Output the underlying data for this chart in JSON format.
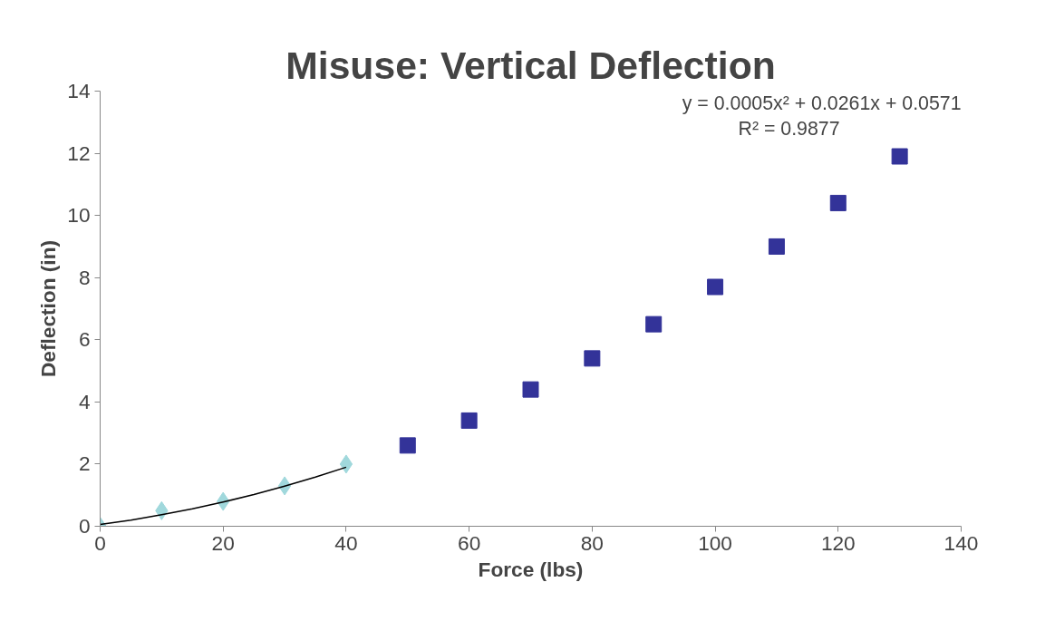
{
  "chart_data": {
    "type": "scatter",
    "title": "Misuse: Vertical Deflection",
    "xlabel": "Force (lbs)",
    "ylabel": "Deflection (in)",
    "xlim": [
      0,
      140
    ],
    "xticks": [
      0,
      20,
      40,
      60,
      80,
      100,
      120,
      140
    ],
    "ylim": [
      0,
      14
    ],
    "yticks": [
      0,
      2,
      4,
      6,
      8,
      10,
      12,
      14
    ],
    "grid": false,
    "series": [
      {
        "marker": "diamond",
        "color": "#a0d8dc",
        "x": [
          0,
          10,
          20,
          30,
          40
        ],
        "values": [
          0,
          0.5,
          0.8,
          1.3,
          2.0
        ]
      },
      {
        "marker": "square",
        "color": "#333399",
        "x": [
          50,
          60,
          70,
          80,
          90,
          100,
          110,
          120,
          130
        ],
        "values": [
          2.6,
          3.4,
          4.4,
          5.4,
          6.5,
          7.7,
          9.0,
          10.4,
          11.9
        ]
      },
      {
        "type": "line",
        "color": "#000000",
        "x": [
          0,
          5,
          10,
          15,
          20,
          25,
          30,
          35,
          40
        ],
        "values": [
          0.06,
          0.2,
          0.37,
          0.56,
          0.78,
          1.02,
          1.29,
          1.58,
          1.9
        ]
      }
    ],
    "annotations": [
      "y = 0.0005x² + 0.0261x + 0.0571",
      "R² = 0.9877"
    ]
  }
}
